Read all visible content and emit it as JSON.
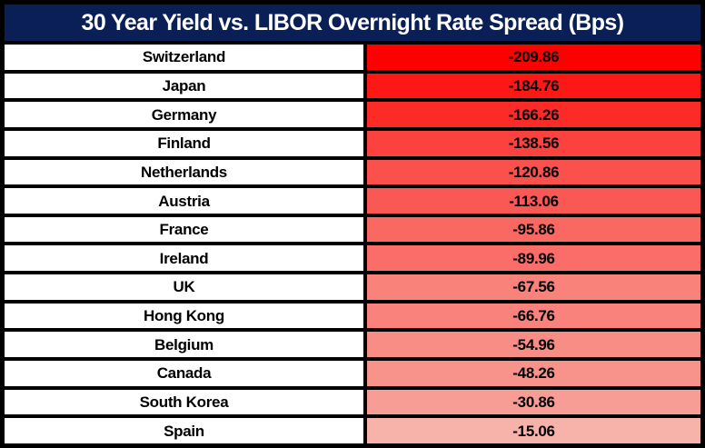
{
  "title": "30 Year Yield vs. LIBOR Overnight Rate Spread (Bps)",
  "colors": {
    "header_bg": "#0A1F55",
    "header_text": "#FFFFFF",
    "border": "#000000",
    "country_cell_bg": "#FFFFFF",
    "row_text": "#000000"
  },
  "chart_data": {
    "type": "table",
    "title": "30 Year Yield vs. LIBOR Overnight Rate Spread (Bps)",
    "legend_position": "none",
    "grid": "solid-black-borders",
    "heat_scale": {
      "min_value": -209.86,
      "max_value": -15.06,
      "min_color": "#FF0000",
      "max_color": "#F7B2AA"
    },
    "rows": [
      {
        "country": "Switzerland",
        "value": "-209.86",
        "cell_color": "#FF0000"
      },
      {
        "country": "Japan",
        "value": "-184.76",
        "cell_color": "#FD1715"
      },
      {
        "country": "Germany",
        "value": "-166.26",
        "cell_color": "#FC2B28"
      },
      {
        "country": "Finland",
        "value": "-138.56",
        "cell_color": "#FB423F"
      },
      {
        "country": "Netherlands",
        "value": "-120.86",
        "cell_color": "#FB514D"
      },
      {
        "country": "Austria",
        "value": "-113.06",
        "cell_color": "#FA5854"
      },
      {
        "country": "France",
        "value": "-95.86",
        "cell_color": "#FA6862"
      },
      {
        "country": "Ireland",
        "value": "-89.96",
        "cell_color": "#FA6D68"
      },
      {
        "country": "UK",
        "value": "-67.56",
        "cell_color": "#F9827B"
      },
      {
        "country": "Hong Kong",
        "value": "-66.76",
        "cell_color": "#F9837C"
      },
      {
        "country": "Belgium",
        "value": "-54.96",
        "cell_color": "#F88D86"
      },
      {
        "country": "Canada",
        "value": "-48.26",
        "cell_color": "#F8938C"
      },
      {
        "country": "South Korea",
        "value": "-30.86",
        "cell_color": "#F79D96"
      },
      {
        "country": "Spain",
        "value": "-15.06",
        "cell_color": "#F7B2AA"
      }
    ]
  }
}
